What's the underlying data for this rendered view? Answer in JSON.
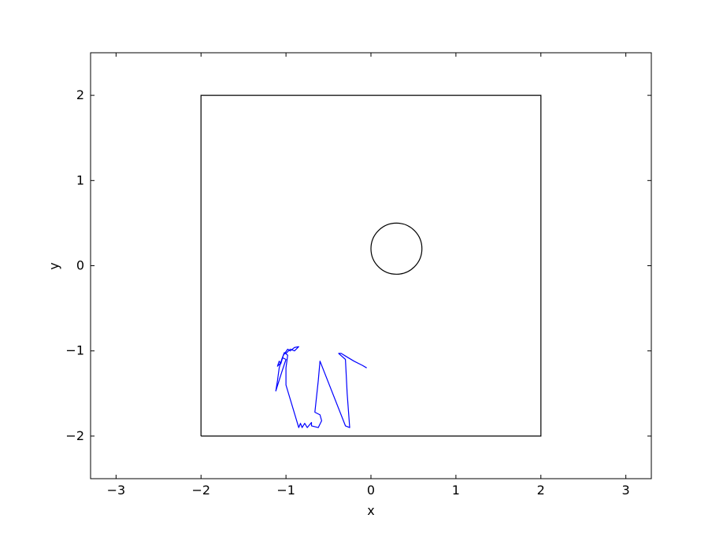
{
  "chart_data": {
    "type": "line",
    "title": "",
    "xlabel": "x",
    "ylabel": "y",
    "xlim": [
      -3.3,
      3.3
    ],
    "ylim": [
      -2.5,
      2.5
    ],
    "x_ticks": [
      -3,
      -2,
      -1,
      0,
      1,
      2,
      3
    ],
    "y_ticks": [
      -2,
      -1,
      0,
      1,
      2
    ],
    "x_tick_labels": [
      "−3",
      "−2",
      "−1",
      "0",
      "1",
      "2",
      "3"
    ],
    "y_tick_labels": [
      "−2",
      "−1",
      "0",
      "1",
      "2"
    ],
    "grid": false,
    "legend": "none",
    "boundary_box": {
      "x": [
        -2,
        2,
        2,
        -2,
        -2
      ],
      "y": [
        -2,
        -2,
        2,
        2,
        -2
      ],
      "color": "#000000"
    },
    "obstacle_circle": {
      "cx": 0.3,
      "cy": 0.2,
      "r": 0.3,
      "color": "#000000"
    },
    "series": [
      {
        "color": "#0000ff",
        "x": [
          -0.05,
          -0.1,
          -0.2,
          -0.3,
          -0.35,
          -0.38,
          -0.3,
          -0.28,
          -0.25,
          -0.3,
          -0.6,
          -0.62,
          -0.66,
          -0.6,
          -0.58,
          -0.62,
          -0.7,
          -0.7,
          -0.75,
          -0.78,
          -0.81,
          -0.83,
          -0.85,
          -1.0,
          -1.0,
          -0.98,
          -1.02,
          -1.05,
          -1.08,
          -1.1,
          -1.12,
          -1.05,
          -1.0,
          -1.04,
          -1.06,
          -1.08,
          -1.1,
          -1.06,
          -1.03,
          -0.98,
          -0.95,
          -0.9,
          -0.85,
          -0.9,
          -0.95,
          -1.0
        ],
        "y": [
          -1.2,
          -1.17,
          -1.12,
          -1.06,
          -1.03,
          -1.03,
          -1.1,
          -1.5,
          -1.9,
          -1.88,
          -1.12,
          -1.35,
          -1.72,
          -1.75,
          -1.82,
          -1.9,
          -1.88,
          -1.84,
          -1.9,
          -1.85,
          -1.9,
          -1.85,
          -1.9,
          -1.4,
          -1.2,
          -1.05,
          -1.02,
          -1.1,
          -1.2,
          -1.35,
          -1.47,
          -1.25,
          -1.1,
          -1.08,
          -1.15,
          -1.12,
          -1.18,
          -1.14,
          -1.05,
          -0.98,
          -1.0,
          -0.96,
          -0.95,
          -1.0,
          -0.98,
          -1.03
        ]
      }
    ]
  }
}
